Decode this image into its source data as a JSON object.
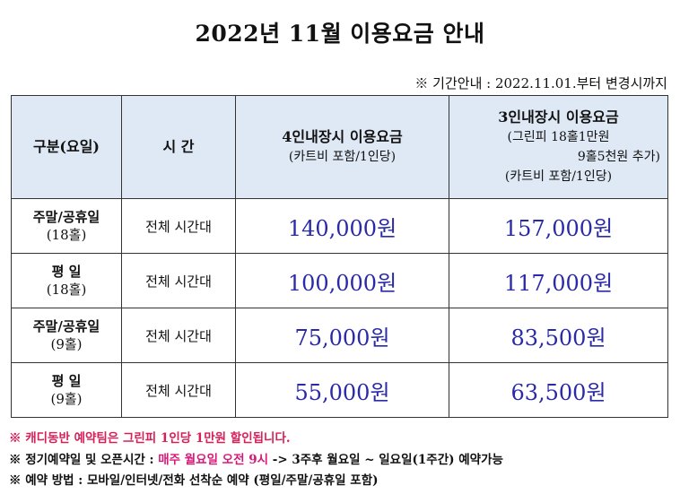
{
  "title": "2022년 11월 이용요금 안내",
  "period_note": "※ 기간안내 : 2022.11.01.부터 변경시까지",
  "table": {
    "headers": {
      "category": "구분(요일)",
      "time": "시 간",
      "four": {
        "main": "4인내장시 이용요금",
        "sub": "(카트비 포함/1인당)"
      },
      "three": {
        "main": "3인내장시 이용요금",
        "sub1": "(그린피 18홀1만원",
        "sub2": "9홀5천원 추가)",
        "sub3": "(카트비 포함/1인당)"
      }
    },
    "rows": [
      {
        "cat1": "주말/공휴일",
        "cat2": "(18홀)",
        "time": "전체 시간대",
        "four": "140,000원",
        "three": "157,000원"
      },
      {
        "cat1": "평 일",
        "cat2": "(18홀)",
        "time": "전체 시간대",
        "four": "100,000원",
        "three": "117,000원"
      },
      {
        "cat1": "주말/공휴일",
        "cat2": "(9홀)",
        "time": "전체 시간대",
        "four": "75,000원",
        "three": "83,500원"
      },
      {
        "cat1": "평 일",
        "cat2": "(9홀)",
        "time": "전체 시간대",
        "four": "55,000원",
        "three": "63,500원"
      }
    ]
  },
  "notes": {
    "caddy": "※ 캐디동반 예약팀은 그린피 1인당 1만원 할인됩니다.",
    "regular_prefix": "※ 정기예약일 및 오픈시간 : ",
    "regular_highlight": "매주 월요일 오전 9시",
    "regular_suffix": " -> 3주후 월요일 ~ 일요일(1주간) 예약가능",
    "method": "※ 예약 방법 : 모바일/인터넷/전화 선착순 예약 (평일/주말/공휴일 포함)"
  },
  "colors": {
    "header_bg": "#dfe9f5",
    "price": "#2a2aa8",
    "note_red": "#d6205a",
    "highlight": "#d61a7a"
  }
}
